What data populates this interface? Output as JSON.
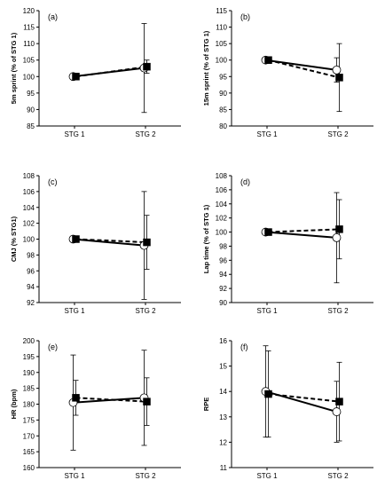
{
  "chart_data": [
    {
      "type": "line",
      "panel_label": "(a)",
      "ylabel": "5m sprint (% of STG 1)",
      "categories": [
        "STG 1",
        "STG 2"
      ],
      "ylim": [
        85,
        120
      ],
      "yticks": [
        85,
        90,
        95,
        100,
        105,
        110,
        115,
        120
      ],
      "series": [
        {
          "marker": "open-circle",
          "line": "solid",
          "values": [
            100,
            102.6
          ],
          "err": [
            0,
            13.5
          ]
        },
        {
          "marker": "filled-square",
          "line": "dashed",
          "values": [
            100,
            103
          ],
          "err": [
            0,
            2
          ]
        }
      ]
    },
    {
      "type": "line",
      "panel_label": "(b)",
      "ylabel": "15m sprint (% of STG 1)",
      "categories": [
        "STG 1",
        "STG 2"
      ],
      "ylim": [
        80,
        115
      ],
      "yticks": [
        80,
        85,
        90,
        95,
        100,
        105,
        110,
        115
      ],
      "series": [
        {
          "marker": "open-circle",
          "line": "solid",
          "values": [
            100,
            97
          ],
          "err": [
            0,
            3.7
          ]
        },
        {
          "marker": "filled-square",
          "line": "dashed",
          "values": [
            100,
            94.7
          ],
          "err": [
            0,
            10.3
          ]
        }
      ]
    },
    {
      "type": "line",
      "panel_label": "(c)",
      "ylabel": "CMJ (% STG1)",
      "categories": [
        "STG 1",
        "STG 2"
      ],
      "ylim": [
        92,
        108
      ],
      "yticks": [
        92,
        94,
        96,
        98,
        100,
        102,
        104,
        106,
        108
      ],
      "series": [
        {
          "marker": "open-circle",
          "line": "solid",
          "values": [
            100,
            99.2
          ],
          "err": [
            0,
            6.8
          ]
        },
        {
          "marker": "filled-square",
          "line": "dashed",
          "values": [
            100,
            99.6
          ],
          "err": [
            0,
            3.4
          ]
        }
      ]
    },
    {
      "type": "line",
      "panel_label": "(d)",
      "ylabel": "Lap time (% of STG 1)",
      "categories": [
        "STG 1",
        "STG 2"
      ],
      "ylim": [
        90,
        108
      ],
      "yticks": [
        90,
        92,
        94,
        96,
        98,
        100,
        102,
        104,
        106,
        108
      ],
      "series": [
        {
          "marker": "open-circle",
          "line": "solid",
          "values": [
            100,
            99.2
          ],
          "err": [
            0,
            6.4
          ]
        },
        {
          "marker": "filled-square",
          "line": "dashed",
          "values": [
            100,
            100.4
          ],
          "err": [
            0,
            4.2
          ]
        }
      ]
    },
    {
      "type": "line",
      "panel_label": "(e)",
      "ylabel": "HR (bpm)",
      "categories": [
        "STG 1",
        "STG 2"
      ],
      "ylim": [
        160,
        200
      ],
      "yticks": [
        160,
        165,
        170,
        175,
        180,
        185,
        190,
        195,
        200
      ],
      "series": [
        {
          "marker": "open-circle",
          "line": "solid",
          "values": [
            180.5,
            182
          ],
          "err": [
            15,
            15
          ]
        },
        {
          "marker": "filled-square",
          "line": "dashed",
          "values": [
            182,
            180.8
          ],
          "err": [
            5.5,
            7.5
          ]
        }
      ]
    },
    {
      "type": "line",
      "panel_label": "(f)",
      "ylabel": "RPE",
      "categories": [
        "STG 1",
        "STG 2"
      ],
      "ylim": [
        11,
        16
      ],
      "yticks": [
        11,
        12,
        13,
        14,
        15,
        16
      ],
      "series": [
        {
          "marker": "open-circle",
          "line": "solid",
          "values": [
            14,
            13.2
          ],
          "err": [
            1.8,
            1.2
          ]
        },
        {
          "marker": "filled-square",
          "line": "dashed",
          "values": [
            13.9,
            13.6
          ],
          "err": [
            1.7,
            1.55
          ]
        }
      ]
    }
  ]
}
